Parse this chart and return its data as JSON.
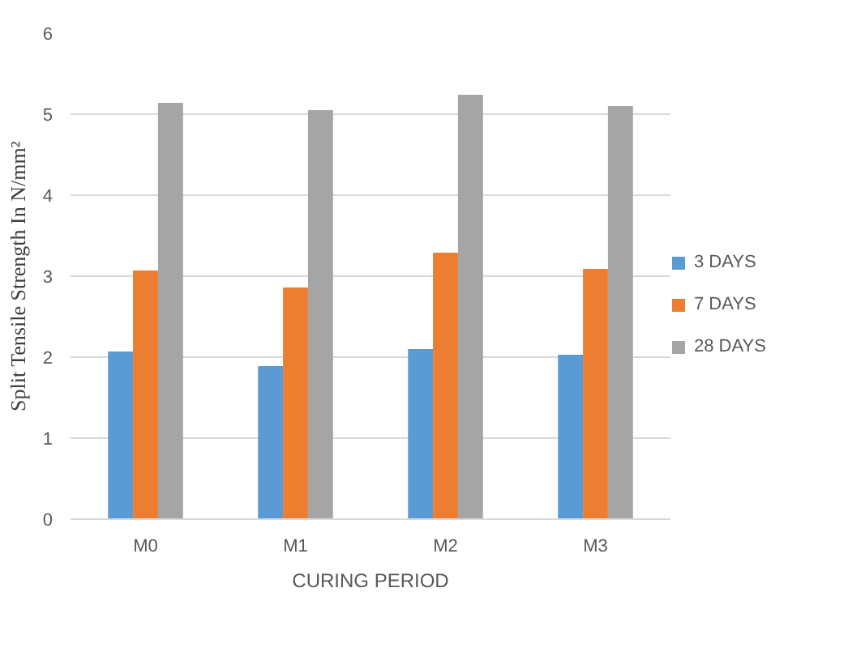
{
  "chart_data": {
    "type": "bar",
    "xlabel": "CURING PERIOD",
    "ylabel": "Split Tensile Strength In N/mm²",
    "categories": [
      "M0",
      "M1",
      "M2",
      "M3"
    ],
    "series": [
      {
        "name": "3 DAYS",
        "color": "#5b9bd5",
        "values": [
          2.07,
          1.89,
          2.1,
          2.03
        ]
      },
      {
        "name": "7 DAYS",
        "color": "#ed7d31",
        "values": [
          3.07,
          2.86,
          3.29,
          3.09
        ]
      },
      {
        "name": "28 DAYS",
        "color": "#a5a5a5",
        "values": [
          5.14,
          5.05,
          5.24,
          5.1
        ]
      }
    ],
    "ylim": [
      0,
      6
    ],
    "yticks": [
      0,
      1,
      2,
      3,
      4,
      5,
      6
    ],
    "grid": "y",
    "legend": "right"
  }
}
